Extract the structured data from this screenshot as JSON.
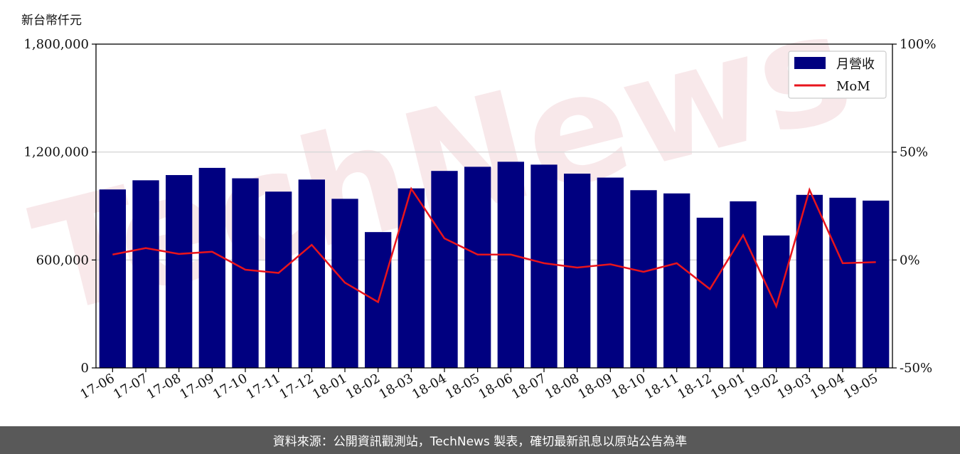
{
  "unit_label": "新台幣仟元",
  "watermark": "TechNews",
  "footer_text": "資料來源：公開資訊觀測站，TechNews 製表，確切最新訊息以原站公告為準",
  "colors": {
    "bar": "#000080",
    "line": "#e8141c",
    "footer_bg": "#595959",
    "watermark": "#f2d6d8"
  },
  "chart_data": {
    "type": "bar",
    "categories": [
      "17-06",
      "17-07",
      "17-08",
      "17-09",
      "17-10",
      "17-11",
      "17-12",
      "18-01",
      "18-02",
      "18-03",
      "18-04",
      "18-05",
      "18-06",
      "18-07",
      "18-08",
      "18-09",
      "18-10",
      "18-11",
      "18-12",
      "19-01",
      "19-02",
      "19-03",
      "19-04",
      "19-05"
    ],
    "series": [
      {
        "name": "月營收",
        "axis": "left",
        "type": "bar",
        "values": [
          992000,
          1043000,
          1072000,
          1112000,
          1054000,
          980000,
          1047000,
          940000,
          755000,
          998000,
          1095000,
          1118000,
          1146000,
          1130000,
          1080000,
          1058000,
          988000,
          970000,
          835000,
          926000,
          736000,
          962000,
          946000,
          930000
        ]
      },
      {
        "name": "MoM",
        "axis": "right",
        "type": "line",
        "values": [
          2.5,
          5.5,
          2.8,
          3.8,
          -4.5,
          -6.0,
          7.0,
          -10.5,
          -19.5,
          33.0,
          10.0,
          2.5,
          2.5,
          -1.5,
          -3.5,
          -2.0,
          -5.5,
          -1.5,
          -13.5,
          11.5,
          -21.5,
          32.5,
          -1.5,
          -1.0
        ]
      }
    ],
    "y_left": {
      "ylim": [
        0,
        1800000
      ],
      "ticks": [
        "0",
        "600,000",
        "1,200,000",
        "1,800,000"
      ]
    },
    "y_right": {
      "ylim": [
        -50,
        100
      ],
      "ticks": [
        "-50%",
        "0%",
        "50%",
        "100%"
      ]
    },
    "grid": "horizontal",
    "legend_position": "top-right"
  }
}
